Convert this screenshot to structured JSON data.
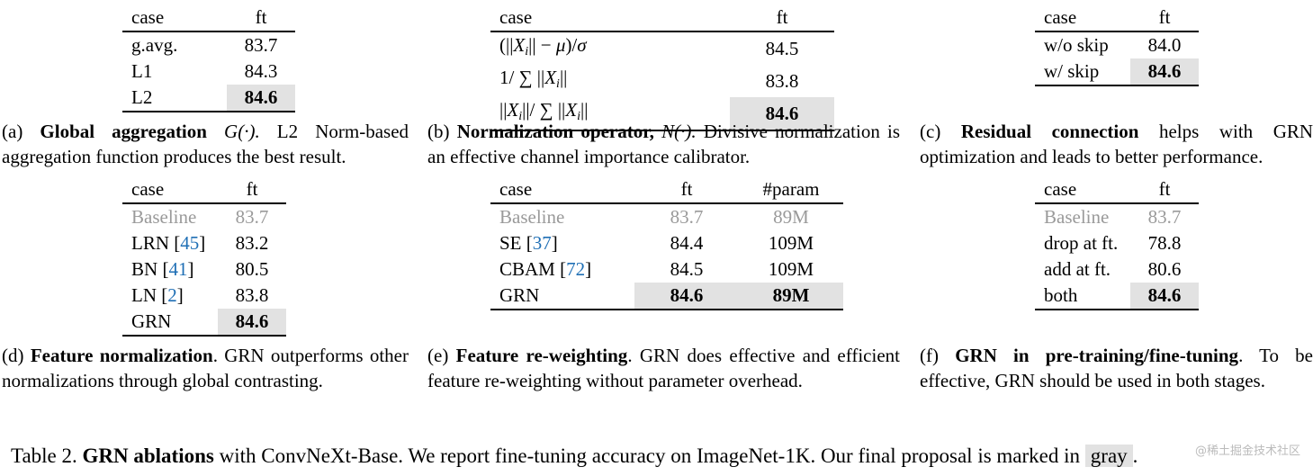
{
  "tables": {
    "a": {
      "headers": [
        "case",
        "ft"
      ],
      "rows": [
        {
          "case": "g.avg.",
          "ft": "83.7"
        },
        {
          "case": "L1",
          "ft": "84.3"
        },
        {
          "case": "L2",
          "ft": "84.6"
        }
      ],
      "caption_label": "(a)",
      "caption_bold": "Global aggregation",
      "caption_math": "G(·).",
      "caption_rest": "L2 Norm-based aggregation function produces the best result."
    },
    "b": {
      "headers": [
        "case",
        "ft"
      ],
      "rows": [
        {
          "ft": "84.5"
        },
        {
          "ft": "83.8"
        },
        {
          "ft": "84.6"
        }
      ],
      "caption_label": "(b)",
      "caption_bold": "Normalization operator,",
      "caption_math": "N(·).",
      "caption_rest": "Divisive normalization is an effective channel importance calibrator."
    },
    "c": {
      "headers": [
        "case",
        "ft"
      ],
      "rows": [
        {
          "case": "w/o skip",
          "ft": "84.0"
        },
        {
          "case": "w/ skip",
          "ft": "84.6"
        }
      ],
      "caption_label": "(c)",
      "caption_bold": "Residual connection",
      "caption_rest": "helps with GRN optimization and leads to better performance."
    },
    "d": {
      "headers": [
        "case",
        "ft"
      ],
      "rows": [
        {
          "case": "Baseline",
          "ref": "",
          "ft": "83.7"
        },
        {
          "case": "LRN",
          "ref": "45",
          "ft": "83.2"
        },
        {
          "case": "BN",
          "ref": "41",
          "ft": "80.5"
        },
        {
          "case": "LN",
          "ref": "2",
          "ft": "83.8"
        },
        {
          "case": "GRN",
          "ref": "",
          "ft": "84.6"
        }
      ],
      "caption_label": "(d)",
      "caption_bold": "Feature normalization",
      "caption_rest": ". GRN outperforms other normalizations through global contrasting."
    },
    "e": {
      "headers": [
        "case",
        "ft",
        "#param"
      ],
      "rows": [
        {
          "case": "Baseline",
          "ref": "",
          "ft": "83.7",
          "param": "89M"
        },
        {
          "case": "SE",
          "ref": "37",
          "ft": "84.4",
          "param": "109M"
        },
        {
          "case": "CBAM",
          "ref": "72",
          "ft": "84.5",
          "param": "109M"
        },
        {
          "case": "GRN",
          "ref": "",
          "ft": "84.6",
          "param": "89M"
        }
      ],
      "caption_label": "(e)",
      "caption_bold": "Feature re-weighting",
      "caption_rest": ". GRN does effective and efficient feature re-weighting without parameter overhead."
    },
    "f": {
      "headers": [
        "case",
        "ft"
      ],
      "rows": [
        {
          "case": "Baseline",
          "ft": "83.7"
        },
        {
          "case": "drop at ft.",
          "ft": "78.8"
        },
        {
          "case": "add at ft.",
          "ft": "80.6"
        },
        {
          "case": "both",
          "ft": "84.6"
        }
      ],
      "caption_label": "(f)",
      "caption_bold": "GRN in pre-training/fine-tuning",
      "caption_rest": ". To be effective, GRN should be used in both stages."
    }
  },
  "main_caption": {
    "label": "Table 2.",
    "bold": "GRN ablations",
    "rest": "with ConvNeXt-Base. We report fine-tuning accuracy on ImageNet-1K. Our final proposal is marked in",
    "gray_word": "gray",
    "end": "."
  },
  "watermark": "@稀土掘金技术社区"
}
